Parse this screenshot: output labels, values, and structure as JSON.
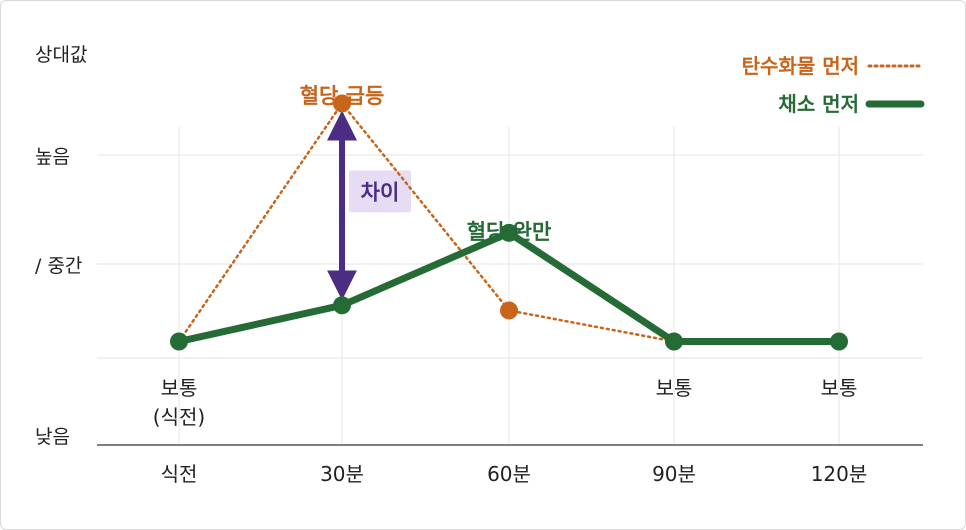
{
  "chart_data": {
    "type": "line",
    "ylabel": "상대값",
    "y_levels": [
      "높음",
      "/ 중간",
      "낮음"
    ],
    "categories": [
      "식전",
      "30분",
      "60분",
      "90분",
      "120분"
    ],
    "ylim": [
      0,
      4
    ],
    "grid": true,
    "legend": "top-right",
    "series": [
      {
        "name": "탄수화물 먼저",
        "style": "dotted",
        "color": "#c8651b",
        "values": [
          1,
          3.3,
          1.3,
          1,
          1
        ]
      },
      {
        "name": "채소 먼저",
        "style": "solid",
        "color": "#256b35",
        "values": [
          1,
          1.35,
          2.05,
          1,
          1
        ]
      }
    ],
    "point_labels": {
      "first": [
        "보통",
        "(식전)"
      ],
      "fourth": "보통",
      "fifth": "보통"
    },
    "annotations": {
      "spike": {
        "text": "혈당 급등",
        "color": "#c8651b"
      },
      "gentle": {
        "text": "혈당 완만",
        "color": "#256b35"
      },
      "diff": {
        "text": "차이",
        "color": "#4b2e83",
        "bg": "#e6ddf4"
      }
    }
  }
}
